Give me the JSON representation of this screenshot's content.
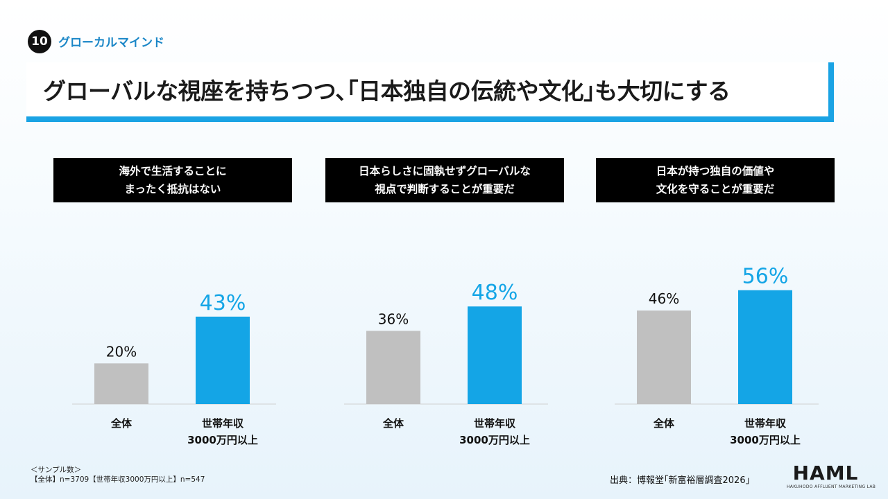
{
  "section": {
    "number": "10",
    "label": "グローカルマインド"
  },
  "title": "グローバルな視座を持ちつつ､｢日本独自の伝統や文化｣も大切にする",
  "colors": {
    "total_bar": "#c0c0c0",
    "high_income_bar": "#14a5e6",
    "title_accent": "#1aa3e4",
    "section_label": "#1a86c7"
  },
  "chart_data": [
    {
      "type": "bar",
      "title_lines": [
        "海外で生活することに",
        "まったく抵抗はない"
      ],
      "categories": [
        "全体",
        "世帯年収\n3000万円以上"
      ],
      "values": [
        20,
        43
      ],
      "value_labels": [
        "20%",
        "43%"
      ],
      "ylim": [
        0,
        60
      ]
    },
    {
      "type": "bar",
      "title_lines": [
        "日本らしさに固執せずグローバルな",
        "視点で判断することが重要だ"
      ],
      "categories": [
        "全体",
        "世帯年収\n3000万円以上"
      ],
      "values": [
        36,
        48
      ],
      "value_labels": [
        "36%",
        "48%"
      ],
      "ylim": [
        0,
        60
      ]
    },
    {
      "type": "bar",
      "title_lines": [
        "日本が持つ独自の価値や",
        "文化を守ることが重要だ"
      ],
      "categories": [
        "全体",
        "世帯年収\n3000万円以上"
      ],
      "values": [
        46,
        56
      ],
      "value_labels": [
        "46%",
        "56%"
      ],
      "ylim": [
        0,
        60
      ]
    }
  ],
  "footnote": {
    "line1": "＜サンプル数＞",
    "line2": "【全体】n=3709【世帯年収3000万円以上】n=547"
  },
  "source": "出典：博報堂｢新富裕層調査2026｣",
  "logo": {
    "main": "HAML",
    "sub": "HAKUHODO AFFLUENT MARKETING LAB"
  }
}
